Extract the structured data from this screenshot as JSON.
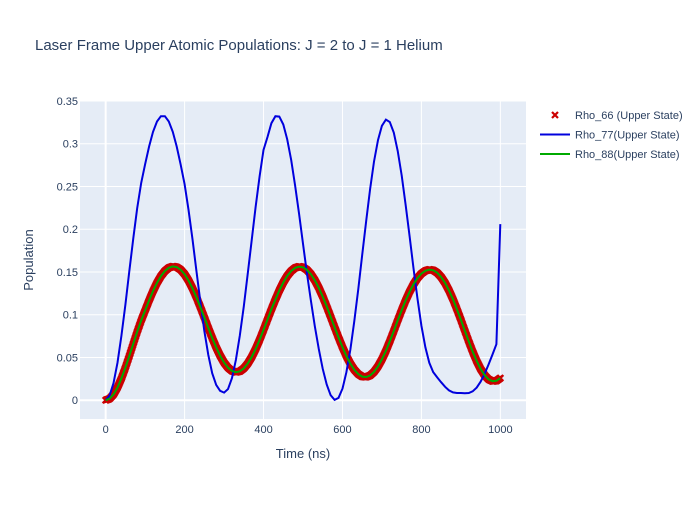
{
  "chart_data": {
    "type": "line",
    "title": "Laser Frame Upper Atomic Populations: J = 2 to J = 1 Helium",
    "xlabel": "Time (ns)",
    "ylabel": "Population",
    "xlim": [
      -65,
      1065
    ],
    "ylim": [
      -0.022,
      0.35
    ],
    "x_ticks": [
      0,
      200,
      400,
      600,
      800,
      1000
    ],
    "x_tick_labels": [
      "0",
      "200",
      "400",
      "600",
      "800",
      "1000"
    ],
    "y_ticks": [
      0,
      0.05,
      0.1,
      0.15,
      0.2,
      0.25,
      0.3,
      0.35
    ],
    "y_tick_labels": [
      "0",
      "0.05",
      "0.1",
      "0.15",
      "0.2",
      "0.25",
      "0.3",
      "0.35"
    ],
    "grid": true,
    "legend_position": "right",
    "plot_background": "#e5ecf6",
    "series": [
      {
        "name": "Rho_66 (Upper State)",
        "mode": "markers",
        "marker": "x",
        "color": "#cc0000",
        "x": [
          0,
          10,
          20,
          30,
          40,
          50,
          60,
          70,
          80,
          90,
          100,
          110,
          120,
          130,
          140,
          150,
          160,
          170,
          180,
          190,
          200,
          210,
          220,
          230,
          240,
          250,
          260,
          270,
          280,
          290,
          300,
          310,
          320,
          330,
          340,
          350,
          360,
          370,
          380,
          390,
          400,
          410,
          420,
          430,
          440,
          450,
          460,
          470,
          480,
          490,
          500,
          510,
          520,
          530,
          540,
          550,
          560,
          570,
          580,
          590,
          600,
          610,
          620,
          630,
          640,
          650,
          660,
          670,
          680,
          690,
          700,
          710,
          720,
          730,
          740,
          750,
          760,
          770,
          780,
          790,
          800,
          810,
          820,
          830,
          840,
          850,
          860,
          870,
          880,
          890,
          900,
          910,
          920,
          930,
          940,
          950,
          960,
          970,
          980,
          990,
          1000
        ],
        "y": [
          0,
          0.0017,
          0.0068,
          0.0149,
          0.0255,
          0.0381,
          0.0518,
          0.0661,
          0.0801,
          0.0932,
          0.1049,
          0.1167,
          0.1276,
          0.1372,
          0.1451,
          0.1511,
          0.1549,
          0.1565,
          0.1557,
          0.1527,
          0.1474,
          0.14,
          0.1309,
          0.1204,
          0.1088,
          0.0968,
          0.0846,
          0.0728,
          0.0618,
          0.0521,
          0.044,
          0.038,
          0.0342,
          0.0328,
          0.0338,
          0.0372,
          0.0428,
          0.0505,
          0.0598,
          0.0705,
          0.0822,
          0.0943,
          0.1063,
          0.1177,
          0.1283,
          0.1377,
          0.1454,
          0.1511,
          0.1548,
          0.1563,
          0.1555,
          0.1525,
          0.1474,
          0.1403,
          0.1315,
          0.1212,
          0.1097,
          0.0977,
          0.0854,
          0.0734,
          0.062,
          0.0516,
          0.0427,
          0.0356,
          0.0305,
          0.0276,
          0.0271,
          0.0289,
          0.0331,
          0.0395,
          0.0478,
          0.0577,
          0.069,
          0.081,
          0.0933,
          0.1053,
          0.1166,
          0.1268,
          0.1356,
          0.1428,
          0.1481,
          0.1514,
          0.1528,
          0.152,
          0.1491,
          0.1441,
          0.1371,
          0.1283,
          0.118,
          0.1064,
          0.0941,
          0.0813,
          0.0687,
          0.0567,
          0.0458,
          0.0365,
          0.0293,
          0.0244,
          0.0222,
          0.0227,
          0.0259
        ]
      },
      {
        "name": "Rho_77(Upper State)",
        "mode": "lines",
        "color": "#0000dd",
        "x": [
          0,
          10,
          20,
          30,
          40,
          50,
          60,
          70,
          80,
          90,
          100,
          110,
          120,
          130,
          140,
          150,
          160,
          170,
          180,
          190,
          200,
          210,
          220,
          230,
          240,
          250,
          260,
          270,
          280,
          290,
          300,
          310,
          320,
          330,
          340,
          350,
          360,
          370,
          380,
          390,
          400,
          410,
          420,
          430,
          440,
          450,
          460,
          470,
          480,
          490,
          500,
          510,
          520,
          530,
          540,
          550,
          560,
          570,
          580,
          590,
          600,
          610,
          620,
          630,
          640,
          650,
          660,
          670,
          680,
          690,
          700,
          710,
          720,
          730,
          740,
          750,
          760,
          770,
          780,
          790,
          800,
          810,
          820,
          830,
          840,
          850,
          860,
          870,
          880,
          890,
          900,
          910,
          920,
          930,
          940,
          950,
          960,
          970,
          980,
          990,
          1000
        ],
        "y": [
          0,
          0.0056,
          0.0199,
          0.0439,
          0.0752,
          0.1118,
          0.1508,
          0.1894,
          0.2247,
          0.2542,
          0.2759,
          0.2968,
          0.3139,
          0.326,
          0.3322,
          0.3322,
          0.326,
          0.3139,
          0.2968,
          0.2759,
          0.2527,
          0.2229,
          0.1883,
          0.1514,
          0.1149,
          0.0813,
          0.053,
          0.0316,
          0.0179,
          0.011,
          0.0089,
          0.013,
          0.026,
          0.0472,
          0.0756,
          0.1097,
          0.1476,
          0.1871,
          0.2259,
          0.2618,
          0.2927,
          0.3079,
          0.324,
          0.3322,
          0.3317,
          0.3225,
          0.3052,
          0.2809,
          0.2511,
          0.2178,
          0.1829,
          0.1488,
          0.1165,
          0.0867,
          0.0598,
          0.0368,
          0.0184,
          0.0059,
          0.0003,
          0.0027,
          0.0136,
          0.0327,
          0.0594,
          0.0925,
          0.1301,
          0.17,
          0.2097,
          0.2469,
          0.2791,
          0.3043,
          0.321,
          0.3282,
          0.3254,
          0.3129,
          0.2916,
          0.2629,
          0.2288,
          0.1918,
          0.1543,
          0.1186,
          0.0871,
          0.0617,
          0.0437,
          0.0329,
          0.0267,
          0.0211,
          0.0157,
          0.0115,
          0.0091,
          0.0084,
          0.0084,
          0.0081,
          0.0084,
          0.0104,
          0.0147,
          0.0216,
          0.0308,
          0.0416,
          0.0534,
          0.0655,
          0.206
        ]
      },
      {
        "name": "Rho_88(Upper State)",
        "mode": "lines",
        "color": "#00aa00",
        "x": [
          0,
          10,
          20,
          30,
          40,
          50,
          60,
          70,
          80,
          90,
          100,
          110,
          120,
          130,
          140,
          150,
          160,
          170,
          180,
          190,
          200,
          210,
          220,
          230,
          240,
          250,
          260,
          270,
          280,
          290,
          300,
          310,
          320,
          330,
          340,
          350,
          360,
          370,
          380,
          390,
          400,
          410,
          420,
          430,
          440,
          450,
          460,
          470,
          480,
          490,
          500,
          510,
          520,
          530,
          540,
          550,
          560,
          570,
          580,
          590,
          600,
          610,
          620,
          630,
          640,
          650,
          660,
          670,
          680,
          690,
          700,
          710,
          720,
          730,
          740,
          750,
          760,
          770,
          780,
          790,
          800,
          810,
          820,
          830,
          840,
          850,
          860,
          870,
          880,
          890,
          900,
          910,
          920,
          930,
          940,
          950,
          960,
          970,
          980,
          990,
          1000
        ],
        "y": [
          0,
          0.0017,
          0.0068,
          0.0149,
          0.0255,
          0.0381,
          0.0518,
          0.0661,
          0.0801,
          0.0932,
          0.1049,
          0.1167,
          0.1276,
          0.1372,
          0.1451,
          0.1511,
          0.1549,
          0.1565,
          0.1557,
          0.1527,
          0.1474,
          0.14,
          0.1309,
          0.1204,
          0.1088,
          0.0968,
          0.0846,
          0.0728,
          0.0618,
          0.0521,
          0.044,
          0.038,
          0.0342,
          0.0328,
          0.0338,
          0.0372,
          0.0428,
          0.0505,
          0.0598,
          0.0705,
          0.0822,
          0.0943,
          0.1063,
          0.1177,
          0.1283,
          0.1377,
          0.1454,
          0.1511,
          0.1548,
          0.1563,
          0.1555,
          0.1525,
          0.1474,
          0.1403,
          0.1315,
          0.1212,
          0.1097,
          0.0977,
          0.0854,
          0.0734,
          0.062,
          0.0516,
          0.0427,
          0.0356,
          0.0305,
          0.0276,
          0.0271,
          0.0289,
          0.0331,
          0.0395,
          0.0478,
          0.0577,
          0.069,
          0.081,
          0.0933,
          0.1053,
          0.1166,
          0.1268,
          0.1356,
          0.1428,
          0.1481,
          0.1514,
          0.1528,
          0.152,
          0.1491,
          0.1441,
          0.1371,
          0.1283,
          0.118,
          0.1064,
          0.0941,
          0.0813,
          0.0687,
          0.0567,
          0.0458,
          0.0365,
          0.0293,
          0.0244,
          0.0222,
          0.0227,
          0.0259
        ]
      }
    ]
  }
}
